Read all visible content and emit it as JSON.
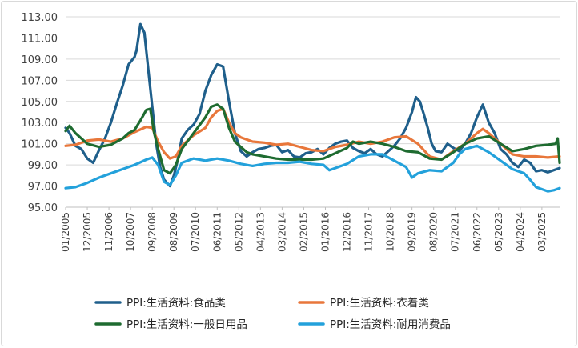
{
  "chart_data": {
    "type": "line",
    "title": "",
    "xlabel": "",
    "ylabel": "",
    "ylim": [
      95.0,
      113.0
    ],
    "y_ticks": [
      "113.00",
      "111.00",
      "109.00",
      "107.00",
      "105.00",
      "103.00",
      "101.00",
      "99.00",
      "97.00",
      "95.00"
    ],
    "x_ticks": [
      "01/2005",
      "12/2005",
      "11/2006",
      "10/2007",
      "09/2008",
      "08/2009",
      "07/2010",
      "06/2011",
      "05/2012",
      "04/2013",
      "03/2014",
      "02/2015",
      "01/2016",
      "12/2016",
      "11/2017",
      "10/2018",
      "09/2019",
      "08/2020",
      "07/2021",
      "06/2022",
      "05/2023",
      "04/2024",
      "03/2025"
    ],
    "x_start": "2005-01",
    "x_end": "2025-12",
    "grid": "horizontal",
    "legend_position": "bottom",
    "series": [
      {
        "name": "PPI:生活资料:食品类",
        "color": "#1f5f8b",
        "points": [
          [
            "2005-01",
            102.5
          ],
          [
            "2005-03",
            102.0
          ],
          [
            "2005-06",
            100.8
          ],
          [
            "2005-09",
            100.5
          ],
          [
            "2005-12",
            99.6
          ],
          [
            "2006-03",
            99.2
          ],
          [
            "2006-06",
            100.4
          ],
          [
            "2006-09",
            101.5
          ],
          [
            "2006-12",
            103.0
          ],
          [
            "2007-03",
            104.8
          ],
          [
            "2007-06",
            106.5
          ],
          [
            "2007-09",
            108.5
          ],
          [
            "2007-12",
            109.2
          ],
          [
            "2008-01",
            109.8
          ],
          [
            "2008-03",
            112.3
          ],
          [
            "2008-05",
            111.5
          ],
          [
            "2008-07",
            108.0
          ],
          [
            "2008-09",
            104.5
          ],
          [
            "2008-11",
            101.0
          ],
          [
            "2009-01",
            98.8
          ],
          [
            "2009-03",
            97.6
          ],
          [
            "2009-06",
            97.0
          ],
          [
            "2009-08",
            98.0
          ],
          [
            "2009-10",
            99.5
          ],
          [
            "2009-12",
            101.5
          ],
          [
            "2010-03",
            102.3
          ],
          [
            "2010-06",
            102.8
          ],
          [
            "2010-09",
            103.8
          ],
          [
            "2010-12",
            106.0
          ],
          [
            "2011-03",
            107.5
          ],
          [
            "2011-06",
            108.5
          ],
          [
            "2011-09",
            108.3
          ],
          [
            "2011-12",
            105.0
          ],
          [
            "2012-03",
            102.0
          ],
          [
            "2012-06",
            100.3
          ],
          [
            "2012-09",
            99.8
          ],
          [
            "2012-12",
            100.2
          ],
          [
            "2013-03",
            100.5
          ],
          [
            "2013-06",
            100.6
          ],
          [
            "2013-09",
            100.8
          ],
          [
            "2013-12",
            100.9
          ],
          [
            "2014-03",
            100.2
          ],
          [
            "2014-06",
            100.4
          ],
          [
            "2014-09",
            99.8
          ],
          [
            "2014-12",
            99.7
          ],
          [
            "2015-03",
            100.1
          ],
          [
            "2015-06",
            100.2
          ],
          [
            "2015-09",
            100.5
          ],
          [
            "2015-12",
            100.0
          ],
          [
            "2016-03",
            100.6
          ],
          [
            "2016-06",
            101.0
          ],
          [
            "2016-09",
            101.2
          ],
          [
            "2016-12",
            101.3
          ],
          [
            "2017-03",
            100.6
          ],
          [
            "2017-06",
            100.3
          ],
          [
            "2017-09",
            100.1
          ],
          [
            "2017-12",
            100.5
          ],
          [
            "2018-03",
            100.0
          ],
          [
            "2018-06",
            99.8
          ],
          [
            "2018-09",
            100.3
          ],
          [
            "2018-12",
            100.8
          ],
          [
            "2019-03",
            101.5
          ],
          [
            "2019-06",
            102.5
          ],
          [
            "2019-09",
            104.0
          ],
          [
            "2019-11",
            105.4
          ],
          [
            "2020-01",
            105.0
          ],
          [
            "2020-03",
            103.8
          ],
          [
            "2020-05",
            102.5
          ],
          [
            "2020-07",
            101.0
          ],
          [
            "2020-09",
            100.3
          ],
          [
            "2020-12",
            100.2
          ],
          [
            "2021-03",
            101.0
          ],
          [
            "2021-06",
            100.6
          ],
          [
            "2021-09",
            100.3
          ],
          [
            "2021-12",
            101.0
          ],
          [
            "2022-03",
            102.0
          ],
          [
            "2022-06",
            103.5
          ],
          [
            "2022-09",
            104.7
          ],
          [
            "2022-12",
            103.0
          ],
          [
            "2023-03",
            102.0
          ],
          [
            "2023-06",
            100.5
          ],
          [
            "2023-09",
            100.0
          ],
          [
            "2023-12",
            99.2
          ],
          [
            "2024-03",
            98.8
          ],
          [
            "2024-06",
            99.5
          ],
          [
            "2024-09",
            99.2
          ],
          [
            "2024-12",
            98.4
          ],
          [
            "2025-03",
            98.5
          ],
          [
            "2025-06",
            98.3
          ],
          [
            "2025-09",
            98.5
          ],
          [
            "2025-12",
            98.7
          ]
        ]
      },
      {
        "name": "PPI:生活资料:衣着类",
        "color": "#e8773b",
        "points": [
          [
            "2005-01",
            100.8
          ],
          [
            "2005-06",
            100.9
          ],
          [
            "2005-12",
            101.3
          ],
          [
            "2006-06",
            101.4
          ],
          [
            "2006-12",
            101.2
          ],
          [
            "2007-06",
            101.5
          ],
          [
            "2007-12",
            102.1
          ],
          [
            "2008-06",
            102.6
          ],
          [
            "2008-09",
            102.5
          ],
          [
            "2008-12",
            101.2
          ],
          [
            "2009-03",
            100.2
          ],
          [
            "2009-06",
            99.6
          ],
          [
            "2009-09",
            99.8
          ],
          [
            "2009-12",
            100.8
          ],
          [
            "2010-06",
            101.8
          ],
          [
            "2010-12",
            102.5
          ],
          [
            "2011-03",
            103.5
          ],
          [
            "2011-06",
            104.1
          ],
          [
            "2011-09",
            104.3
          ],
          [
            "2011-12",
            103.0
          ],
          [
            "2012-03",
            102.0
          ],
          [
            "2012-06",
            101.6
          ],
          [
            "2012-12",
            101.2
          ],
          [
            "2013-06",
            101.1
          ],
          [
            "2013-12",
            100.9
          ],
          [
            "2014-06",
            101.0
          ],
          [
            "2014-12",
            100.7
          ],
          [
            "2015-06",
            100.4
          ],
          [
            "2015-12",
            100.3
          ],
          [
            "2016-06",
            100.7
          ],
          [
            "2016-12",
            100.9
          ],
          [
            "2017-06",
            101.2
          ],
          [
            "2017-12",
            101.0
          ],
          [
            "2018-06",
            101.2
          ],
          [
            "2018-12",
            101.6
          ],
          [
            "2019-06",
            101.7
          ],
          [
            "2019-12",
            101.0
          ],
          [
            "2020-06",
            99.8
          ],
          [
            "2020-12",
            99.5
          ],
          [
            "2021-06",
            100.3
          ],
          [
            "2021-12",
            101.0
          ],
          [
            "2022-06",
            102.0
          ],
          [
            "2022-09",
            102.4
          ],
          [
            "2022-12",
            102.0
          ],
          [
            "2023-06",
            101.0
          ],
          [
            "2023-12",
            100.0
          ],
          [
            "2024-06",
            99.8
          ],
          [
            "2024-12",
            99.8
          ],
          [
            "2025-06",
            99.7
          ],
          [
            "2025-12",
            99.8
          ]
        ]
      },
      {
        "name": "PPI:生活资料:一般日用品",
        "color": "#1e6b30",
        "points": [
          [
            "2005-01",
            102.2
          ],
          [
            "2005-03",
            102.7
          ],
          [
            "2005-06",
            102.0
          ],
          [
            "2005-09",
            101.5
          ],
          [
            "2005-12",
            101.0
          ],
          [
            "2006-06",
            100.7
          ],
          [
            "2006-12",
            100.9
          ],
          [
            "2007-03",
            101.2
          ],
          [
            "2007-06",
            101.5
          ],
          [
            "2007-09",
            102.0
          ],
          [
            "2007-12",
            102.3
          ],
          [
            "2008-03",
            103.2
          ],
          [
            "2008-06",
            104.2
          ],
          [
            "2008-08",
            104.3
          ],
          [
            "2008-10",
            102.0
          ],
          [
            "2008-12",
            100.5
          ],
          [
            "2009-03",
            98.5
          ],
          [
            "2009-06",
            98.2
          ],
          [
            "2009-09",
            99.0
          ],
          [
            "2009-12",
            100.5
          ],
          [
            "2010-06",
            102.0
          ],
          [
            "2010-12",
            103.5
          ],
          [
            "2011-03",
            104.5
          ],
          [
            "2011-06",
            104.7
          ],
          [
            "2011-09",
            104.3
          ],
          [
            "2011-12",
            102.5
          ],
          [
            "2012-03",
            101.2
          ],
          [
            "2012-06",
            100.7
          ],
          [
            "2012-09",
            100.2
          ],
          [
            "2012-12",
            100.0
          ],
          [
            "2013-06",
            99.8
          ],
          [
            "2013-12",
            99.6
          ],
          [
            "2014-06",
            99.5
          ],
          [
            "2014-12",
            99.5
          ],
          [
            "2015-06",
            99.5
          ],
          [
            "2015-12",
            99.6
          ],
          [
            "2016-06",
            100.1
          ],
          [
            "2016-12",
            100.6
          ],
          [
            "2017-03",
            101.2
          ],
          [
            "2017-06",
            101.0
          ],
          [
            "2017-12",
            101.2
          ],
          [
            "2018-06",
            101.0
          ],
          [
            "2018-12",
            100.7
          ],
          [
            "2019-06",
            100.3
          ],
          [
            "2019-12",
            100.2
          ],
          [
            "2020-06",
            99.6
          ],
          [
            "2020-12",
            99.5
          ],
          [
            "2021-06",
            100.2
          ],
          [
            "2021-12",
            101.0
          ],
          [
            "2022-06",
            101.5
          ],
          [
            "2022-12",
            101.7
          ],
          [
            "2023-06",
            101.0
          ],
          [
            "2023-12",
            100.3
          ],
          [
            "2024-06",
            100.5
          ],
          [
            "2024-12",
            100.8
          ],
          [
            "2025-06",
            100.9
          ],
          [
            "2025-10",
            101.0
          ],
          [
            "2025-11",
            101.5
          ],
          [
            "2025-12",
            99.2
          ]
        ]
      },
      {
        "name": "PPI:生活资料:耐用消费品",
        "color": "#23a1db",
        "points": [
          [
            "2005-01",
            96.8
          ],
          [
            "2005-06",
            96.9
          ],
          [
            "2005-12",
            97.3
          ],
          [
            "2006-06",
            97.8
          ],
          [
            "2006-12",
            98.2
          ],
          [
            "2007-06",
            98.6
          ],
          [
            "2007-12",
            99.0
          ],
          [
            "2008-06",
            99.5
          ],
          [
            "2008-09",
            99.7
          ],
          [
            "2008-12",
            99.0
          ],
          [
            "2009-03",
            97.4
          ],
          [
            "2009-06",
            97.1
          ],
          [
            "2009-09",
            98.0
          ],
          [
            "2009-12",
            99.2
          ],
          [
            "2010-06",
            99.6
          ],
          [
            "2010-12",
            99.4
          ],
          [
            "2011-06",
            99.6
          ],
          [
            "2011-12",
            99.4
          ],
          [
            "2012-06",
            99.1
          ],
          [
            "2012-12",
            98.9
          ],
          [
            "2013-06",
            99.1
          ],
          [
            "2013-12",
            99.2
          ],
          [
            "2014-06",
            99.2
          ],
          [
            "2014-12",
            99.3
          ],
          [
            "2015-06",
            99.1
          ],
          [
            "2015-12",
            99.0
          ],
          [
            "2016-03",
            98.5
          ],
          [
            "2016-06",
            98.7
          ],
          [
            "2016-12",
            99.1
          ],
          [
            "2017-06",
            99.8
          ],
          [
            "2017-12",
            100.0
          ],
          [
            "2018-06",
            100.0
          ],
          [
            "2018-12",
            99.4
          ],
          [
            "2019-06",
            98.8
          ],
          [
            "2019-09",
            97.8
          ],
          [
            "2019-12",
            98.2
          ],
          [
            "2020-06",
            98.5
          ],
          [
            "2020-12",
            98.4
          ],
          [
            "2021-06",
            99.2
          ],
          [
            "2021-09",
            100.0
          ],
          [
            "2021-12",
            100.5
          ],
          [
            "2022-06",
            100.8
          ],
          [
            "2022-09",
            100.5
          ],
          [
            "2022-12",
            100.2
          ],
          [
            "2023-06",
            99.4
          ],
          [
            "2023-12",
            98.6
          ],
          [
            "2024-06",
            98.2
          ],
          [
            "2024-09",
            97.6
          ],
          [
            "2024-12",
            96.9
          ],
          [
            "2025-03",
            96.7
          ],
          [
            "2025-06",
            96.5
          ],
          [
            "2025-09",
            96.6
          ],
          [
            "2025-12",
            96.8
          ]
        ]
      }
    ]
  }
}
